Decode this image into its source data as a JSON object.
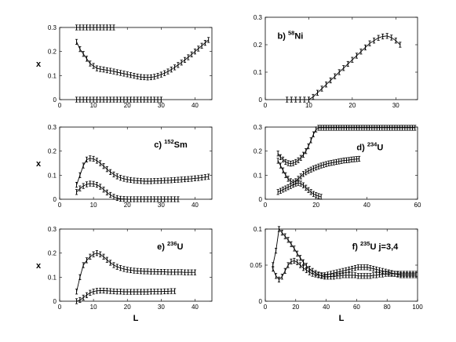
{
  "chart_data": [
    {
      "type": "scatter",
      "panel_label": "",
      "xlabel": "",
      "ylabel": "x",
      "xlim": [
        0,
        45
      ],
      "ylim": [
        0,
        0.3
      ],
      "xticks": [
        0,
        10,
        20,
        30,
        40
      ],
      "yticks": [
        0,
        0.1,
        0.2,
        0.3
      ],
      "series": [
        {
          "x": [
            5,
            6,
            7,
            8,
            9,
            10,
            11,
            12,
            13,
            14,
            15,
            16
          ],
          "y": [
            0.3,
            0.3,
            0.3,
            0.3,
            0.3,
            0.3,
            0.3,
            0.3,
            0.3,
            0.3,
            0.3,
            0.3
          ]
        },
        {
          "x": [
            5,
            6,
            7,
            8,
            9,
            10,
            11,
            12,
            13,
            14,
            15,
            16,
            17,
            18,
            19,
            20,
            21,
            22,
            23,
            24,
            25,
            26,
            27,
            28,
            29,
            30,
            31,
            32,
            33,
            34,
            35,
            36,
            37,
            38,
            39,
            40,
            41,
            42,
            43,
            44
          ],
          "y": [
            0.24,
            0.21,
            0.19,
            0.17,
            0.15,
            0.14,
            0.13,
            0.127,
            0.125,
            0.122,
            0.12,
            0.117,
            0.114,
            0.111,
            0.108,
            0.105,
            0.102,
            0.099,
            0.096,
            0.094,
            0.093,
            0.092,
            0.093,
            0.095,
            0.099,
            0.104,
            0.11,
            0.117,
            0.125,
            0.134,
            0.144,
            0.154,
            0.165,
            0.176,
            0.188,
            0.2,
            0.212,
            0.224,
            0.236,
            0.248
          ]
        },
        {
          "x": [
            5,
            6,
            7,
            8,
            9,
            10,
            11,
            12,
            13,
            14,
            15,
            16,
            17,
            18,
            19,
            20,
            21,
            22,
            23,
            24,
            25,
            26,
            27,
            28,
            29,
            30
          ],
          "y": [
            0,
            0,
            0,
            0,
            0,
            0,
            0,
            0,
            0,
            0,
            0,
            0,
            0,
            0,
            0,
            0,
            0,
            0,
            0,
            0,
            0,
            0,
            0,
            0,
            0,
            0
          ]
        }
      ]
    },
    {
      "type": "scatter",
      "panel_label": "b) ",
      "panel_sup": "58",
      "panel_nuc": "Ni",
      "xlabel": "",
      "ylabel": "",
      "xlim": [
        0,
        35
      ],
      "ylim": [
        0,
        0.3
      ],
      "xticks": [
        0,
        10,
        20,
        30
      ],
      "yticks": [
        0,
        0.1,
        0.2,
        0.3
      ],
      "series": [
        {
          "x": [
            5,
            6,
            7,
            8,
            9,
            10,
            11,
            12,
            13,
            14,
            15,
            16,
            17,
            18,
            19,
            20,
            21,
            22,
            23,
            24,
            25,
            26,
            27,
            28,
            29,
            30,
            31
          ],
          "y": [
            0,
            0,
            0,
            0,
            0,
            0,
            0.01,
            0.025,
            0.04,
            0.055,
            0.07,
            0.085,
            0.1,
            0.115,
            0.13,
            0.145,
            0.16,
            0.175,
            0.19,
            0.205,
            0.215,
            0.225,
            0.23,
            0.232,
            0.226,
            0.215,
            0.2
          ]
        }
      ]
    },
    {
      "type": "scatter",
      "panel_label": "c) ",
      "panel_sup": "152",
      "panel_nuc": "Sm",
      "xlabel": "",
      "ylabel": "x",
      "xlim": [
        0,
        45
      ],
      "ylim": [
        0,
        0.3
      ],
      "xticks": [
        0,
        10,
        20,
        30,
        40
      ],
      "yticks": [
        0,
        0.1,
        0.2,
        0.3
      ],
      "series": [
        {
          "x": [
            5,
            6,
            7,
            8,
            9,
            10,
            11,
            12,
            13,
            14,
            15,
            16,
            17,
            18,
            19,
            20,
            21,
            22,
            23,
            24,
            25,
            26,
            27,
            28,
            29,
            30,
            31,
            32,
            33,
            34,
            35,
            36,
            37,
            38,
            39,
            40,
            41,
            42,
            43,
            44
          ],
          "y": [
            0.06,
            0.1,
            0.14,
            0.165,
            0.17,
            0.168,
            0.16,
            0.15,
            0.138,
            0.125,
            0.113,
            0.103,
            0.095,
            0.089,
            0.085,
            0.082,
            0.08,
            0.078,
            0.077,
            0.076,
            0.075,
            0.075,
            0.075,
            0.076,
            0.076,
            0.077,
            0.078,
            0.078,
            0.079,
            0.08,
            0.081,
            0.082,
            0.083,
            0.084,
            0.085,
            0.087,
            0.088,
            0.09,
            0.092,
            0.094
          ]
        },
        {
          "x": [
            5,
            6,
            7,
            8,
            9,
            10,
            11,
            12,
            13,
            14,
            15,
            16,
            17,
            18,
            19,
            20,
            21,
            22,
            23,
            24,
            25,
            26,
            27,
            28,
            29,
            30,
            31,
            32,
            33,
            34,
            35
          ],
          "y": [
            0.03,
            0.045,
            0.055,
            0.062,
            0.065,
            0.064,
            0.06,
            0.052,
            0.04,
            0.028,
            0.018,
            0.01,
            0.005,
            0.002,
            0.001,
            0,
            0,
            0,
            0,
            0,
            0,
            0,
            0,
            0,
            0,
            0,
            0,
            0,
            0,
            0,
            0
          ]
        }
      ]
    },
    {
      "type": "scatter",
      "panel_label": "d) ",
      "panel_sup": "234",
      "panel_nuc": "U",
      "xlabel": "",
      "ylabel": "",
      "xlim": [
        0,
        60
      ],
      "ylim": [
        0,
        0.3
      ],
      "xticks": [
        0,
        20,
        40,
        60
      ],
      "yticks": [
        0,
        0.1,
        0.2,
        0.3
      ],
      "series": [
        {
          "x": [
            5,
            6,
            7,
            8,
            9,
            10,
            11,
            12,
            13,
            14,
            15,
            16,
            17,
            18,
            19,
            20,
            21,
            22,
            23,
            24,
            25,
            26,
            27,
            28,
            29,
            30,
            31,
            32,
            33,
            34,
            35,
            36,
            37,
            38,
            39,
            40,
            41,
            42,
            43,
            44,
            45,
            46,
            47,
            48,
            49,
            50,
            51,
            52,
            53,
            54,
            55,
            56,
            57,
            58,
            59
          ],
          "y": [
            0.19,
            0.175,
            0.165,
            0.155,
            0.15,
            0.148,
            0.15,
            0.155,
            0.162,
            0.172,
            0.185,
            0.2,
            0.22,
            0.245,
            0.27,
            0.29,
            0.297,
            0.297,
            0.297,
            0.297,
            0.297,
            0.297,
            0.297,
            0.297,
            0.297,
            0.297,
            0.297,
            0.297,
            0.297,
            0.297,
            0.297,
            0.297,
            0.297,
            0.297,
            0.297,
            0.297,
            0.297,
            0.297,
            0.297,
            0.297,
            0.297,
            0.297,
            0.297,
            0.297,
            0.297,
            0.297,
            0.297,
            0.297,
            0.297,
            0.297,
            0.297,
            0.297,
            0.297,
            0.297,
            0.297
          ]
        },
        {
          "x": [
            5,
            6,
            7,
            8,
            9,
            10,
            11,
            12,
            13,
            14,
            15,
            16,
            17,
            18,
            19,
            20,
            21,
            22,
            23,
            24,
            25,
            26,
            27,
            28,
            29,
            30,
            31,
            32,
            33,
            34,
            35,
            36,
            37
          ],
          "y": [
            0.16,
            0.14,
            0.12,
            0.1,
            0.085,
            0.075,
            0.07,
            0.075,
            0.085,
            0.095,
            0.105,
            0.112,
            0.118,
            0.123,
            0.128,
            0.132,
            0.136,
            0.14,
            0.143,
            0.146,
            0.149,
            0.151,
            0.153,
            0.155,
            0.157,
            0.159,
            0.161,
            0.162,
            0.163,
            0.165,
            0.166,
            0.167,
            0.168
          ]
        },
        {
          "x": [
            5,
            6,
            7,
            8,
            9,
            10,
            11,
            12,
            13,
            14,
            15,
            16,
            17,
            18,
            19,
            20,
            21,
            22
          ],
          "y": [
            0.03,
            0.035,
            0.04,
            0.045,
            0.05,
            0.055,
            0.06,
            0.065,
            0.068,
            0.065,
            0.058,
            0.048,
            0.038,
            0.03,
            0.022,
            0.017,
            0.013,
            0.01
          ]
        }
      ]
    },
    {
      "type": "scatter",
      "panel_label": "e) ",
      "panel_sup": "236",
      "panel_nuc": "U",
      "xlabel": "L",
      "ylabel": "x",
      "xlim": [
        0,
        45
      ],
      "ylim": [
        0,
        0.3
      ],
      "xticks": [
        0,
        10,
        20,
        30,
        40
      ],
      "yticks": [
        0,
        0.1,
        0.2,
        0.3
      ],
      "series": [
        {
          "x": [
            5,
            6,
            7,
            8,
            9,
            10,
            11,
            12,
            13,
            14,
            15,
            16,
            17,
            18,
            19,
            20,
            21,
            22,
            23,
            24,
            25,
            26,
            27,
            28,
            29,
            30,
            31,
            32,
            33,
            34,
            35,
            36,
            37,
            38,
            39,
            40
          ],
          "y": [
            0.04,
            0.1,
            0.15,
            0.17,
            0.185,
            0.195,
            0.2,
            0.195,
            0.185,
            0.172,
            0.16,
            0.15,
            0.143,
            0.138,
            0.134,
            0.131,
            0.129,
            0.127,
            0.126,
            0.125,
            0.124,
            0.124,
            0.123,
            0.123,
            0.122,
            0.122,
            0.122,
            0.121,
            0.121,
            0.121,
            0.121,
            0.121,
            0.12,
            0.12,
            0.12,
            0.12
          ]
        },
        {
          "x": [
            5,
            6,
            7,
            8,
            9,
            10,
            11,
            12,
            13,
            14,
            15,
            16,
            17,
            18,
            19,
            20,
            21,
            22,
            23,
            24,
            25,
            26,
            27,
            28,
            29,
            30,
            31,
            32,
            33,
            34
          ],
          "y": [
            0,
            0.005,
            0.015,
            0.025,
            0.035,
            0.04,
            0.043,
            0.044,
            0.044,
            0.043,
            0.042,
            0.041,
            0.04,
            0.04,
            0.039,
            0.039,
            0.039,
            0.039,
            0.039,
            0.039,
            0.039,
            0.039,
            0.04,
            0.04,
            0.04,
            0.04,
            0.041,
            0.041,
            0.042,
            0.042
          ]
        }
      ]
    },
    {
      "type": "scatter",
      "panel_label": "f) ",
      "panel_sup": "235",
      "panel_nuc": "U  j=3,4",
      "xlabel": "L",
      "ylabel": "",
      "xlim": [
        0,
        100
      ],
      "ylim": [
        0,
        0.1
      ],
      "xticks": [
        0,
        20,
        40,
        60,
        80,
        100
      ],
      "yticks": [
        0,
        0.05,
        0.1
      ],
      "series": [
        {
          "x": [
            5,
            7,
            9,
            11,
            13,
            15,
            17,
            19,
            21,
            23,
            25,
            27,
            29,
            31,
            33,
            35,
            37,
            39,
            41,
            43,
            45,
            47,
            49,
            51,
            53,
            55,
            57,
            59,
            61,
            63,
            65,
            67,
            69,
            71,
            73,
            75,
            77,
            79,
            81,
            83,
            85,
            87,
            89,
            91,
            93,
            95,
            97,
            99
          ],
          "y": [
            0.045,
            0.035,
            0.03,
            0.034,
            0.042,
            0.05,
            0.055,
            0.056,
            0.054,
            0.05,
            0.046,
            0.043,
            0.04,
            0.038,
            0.037,
            0.036,
            0.036,
            0.036,
            0.037,
            0.038,
            0.039,
            0.04,
            0.041,
            0.042,
            0.043,
            0.044,
            0.045,
            0.046,
            0.047,
            0.047,
            0.047,
            0.047,
            0.046,
            0.045,
            0.044,
            0.043,
            0.042,
            0.041,
            0.04,
            0.039,
            0.038,
            0.037,
            0.036,
            0.036,
            0.036,
            0.036,
            0.036,
            0.036
          ]
        },
        {
          "x": [
            5,
            7,
            9,
            11,
            13,
            15,
            17,
            19,
            21,
            23,
            25,
            27,
            29,
            31,
            33,
            35,
            37,
            39,
            41,
            43,
            45,
            47,
            49,
            51,
            53,
            55,
            57,
            59,
            61,
            63,
            65,
            67,
            69,
            71,
            73,
            75,
            77,
            79,
            81,
            83,
            85,
            87,
            89,
            91,
            93,
            95,
            97,
            99
          ],
          "y": [
            0.05,
            0.07,
            0.1,
            0.095,
            0.09,
            0.085,
            0.079,
            0.073,
            0.066,
            0.06,
            0.054,
            0.049,
            0.045,
            0.042,
            0.039,
            0.037,
            0.035,
            0.034,
            0.034,
            0.034,
            0.034,
            0.035,
            0.035,
            0.036,
            0.036,
            0.036,
            0.036,
            0.036,
            0.035,
            0.035,
            0.035,
            0.035,
            0.035,
            0.036,
            0.036,
            0.037,
            0.037,
            0.038,
            0.038,
            0.038,
            0.038,
            0.038,
            0.038,
            0.038,
            0.038,
            0.038,
            0.038,
            0.038
          ]
        }
      ]
    }
  ]
}
